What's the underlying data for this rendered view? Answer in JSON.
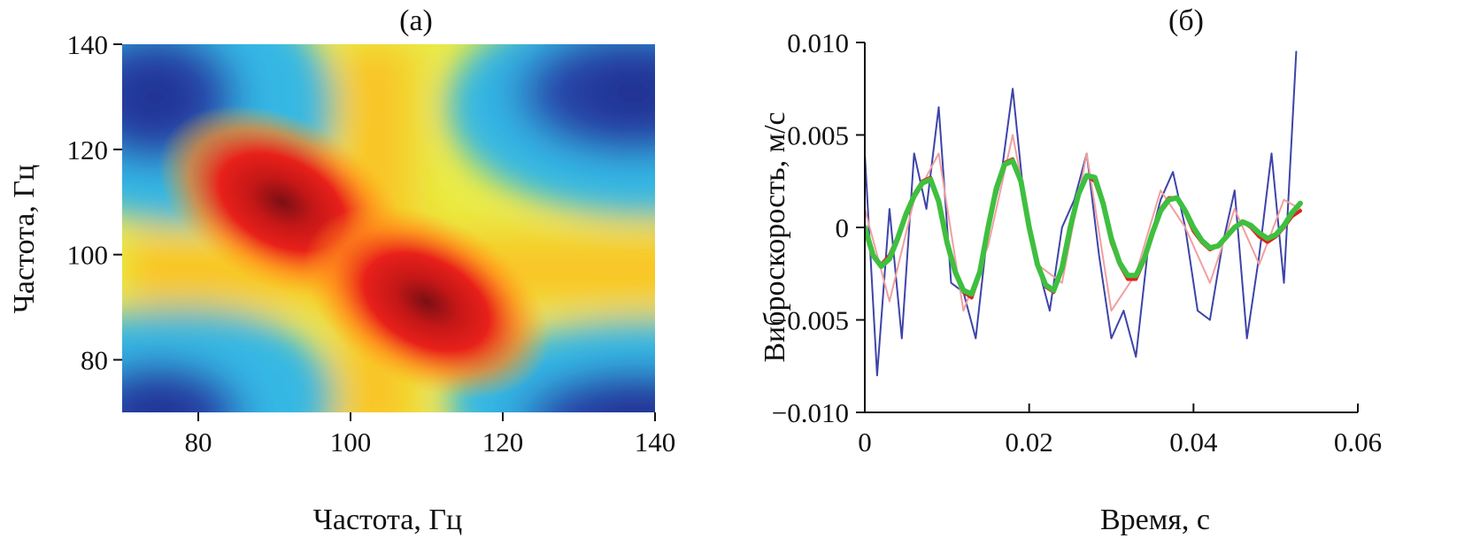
{
  "chart_data": [
    {
      "type": "heatmap",
      "panel_label": "(a)",
      "xlabel": "Частота, Гц",
      "ylabel": "Частота, Гц",
      "xlim": [
        70,
        140
      ],
      "ylim": [
        70,
        140
      ],
      "xticks": [
        80,
        100,
        120,
        140
      ],
      "yticks": [
        80,
        100,
        120,
        140
      ],
      "colormap": [
        "#1e2c8a",
        "#2a55b8",
        "#2fb6e6",
        "#f4ec42",
        "#ffae1a",
        "#e8201a",
        "#7a0f14"
      ],
      "peaks": [
        {
          "x": 91,
          "y": 110,
          "value": 1.0
        },
        {
          "x": 110,
          "y": 91,
          "value": 1.0
        }
      ],
      "grid": false
    },
    {
      "type": "line",
      "panel_label": "(б)",
      "xlabel": "Время, с",
      "ylabel": "Виброскорость, м/с",
      "xlim": [
        0,
        0.06
      ],
      "ylim": [
        -0.01,
        0.01
      ],
      "xticks": [
        0,
        0.02,
        0.04,
        0.06
      ],
      "xtick_labels": [
        "0",
        "0.02",
        "0.04",
        "0.06"
      ],
      "yticks": [
        -0.01,
        -0.005,
        0,
        0.005,
        0.01
      ],
      "ytick_labels": [
        "−0.010",
        "−0.005",
        "0",
        "0.005",
        "0.010"
      ],
      "grid": false,
      "series": [
        {
          "color": "#3d44a8",
          "x": [
            0,
            0.0015,
            0.003,
            0.0045,
            0.006,
            0.0075,
            0.009,
            0.0105,
            0.012,
            0.0135,
            0.015,
            0.0165,
            0.018,
            0.0195,
            0.021,
            0.0225,
            0.024,
            0.0255,
            0.027,
            0.0285,
            0.03,
            0.0315,
            0.033,
            0.0345,
            0.036,
            0.0375,
            0.039,
            0.0405,
            0.042,
            0.0435,
            0.045,
            0.0465,
            0.048,
            0.0495,
            0.051,
            0.0525
          ],
          "y": [
            0.004,
            -0.008,
            0.001,
            -0.006,
            0.004,
            0.001,
            0.0065,
            -0.003,
            -0.0035,
            -0.006,
            0.0,
            0.0025,
            0.0075,
            0.001,
            -0.002,
            -0.0045,
            0.0,
            0.0015,
            0.004,
            -0.0015,
            -0.006,
            -0.0045,
            -0.007,
            -0.001,
            0.0015,
            0.003,
            0.0,
            -0.0045,
            -0.005,
            -0.001,
            0.002,
            -0.006,
            -0.0015,
            0.004,
            -0.003,
            0.0095
          ]
        },
        {
          "color": "#f0a0a0",
          "x": [
            0,
            0.003,
            0.006,
            0.009,
            0.012,
            0.015,
            0.018,
            0.021,
            0.024,
            0.027,
            0.03,
            0.033,
            0.036,
            0.039,
            0.042,
            0.045,
            0.048,
            0.051,
            0.053
          ],
          "y": [
            0.001,
            -0.004,
            0.0015,
            0.004,
            -0.0045,
            -0.001,
            0.005,
            -0.002,
            -0.003,
            0.004,
            -0.0045,
            -0.0025,
            0.002,
            0.0,
            -0.003,
            0.001,
            -0.002,
            0.0015,
            0.001
          ]
        },
        {
          "color": "#e02020",
          "x": [
            0,
            0.001,
            0.002,
            0.003,
            0.004,
            0.005,
            0.006,
            0.007,
            0.008,
            0.009,
            0.01,
            0.011,
            0.012,
            0.013,
            0.014,
            0.015,
            0.016,
            0.017,
            0.018,
            0.019,
            0.02,
            0.021,
            0.022,
            0.023,
            0.024,
            0.025,
            0.026,
            0.027,
            0.028,
            0.029,
            0.03,
            0.031,
            0.032,
            0.033,
            0.034,
            0.035,
            0.036,
            0.037,
            0.038,
            0.039,
            0.04,
            0.041,
            0.042,
            0.043,
            0.044,
            0.045,
            0.046,
            0.047,
            0.048,
            0.049,
            0.05,
            0.051,
            0.052,
            0.053
          ],
          "y": [
            0.0,
            -0.0015,
            -0.002,
            -0.0015,
            -0.0005,
            0.0008,
            0.0018,
            0.0025,
            0.0027,
            0.0015,
            -0.0008,
            -0.0025,
            -0.0035,
            -0.0038,
            -0.0025,
            0.0,
            0.0022,
            0.0035,
            0.0037,
            0.0025,
            0.0,
            -0.002,
            -0.0032,
            -0.0035,
            -0.0022,
            0.0,
            0.0018,
            0.0028,
            0.0025,
            0.0012,
            -0.0008,
            -0.002,
            -0.0028,
            -0.0028,
            -0.0018,
            -0.0002,
            0.001,
            0.0016,
            0.0016,
            0.0008,
            -0.0002,
            -0.0008,
            -0.0012,
            -0.001,
            -0.0005,
            0.0,
            0.0003,
            0.0,
            -0.0005,
            -0.0008,
            -0.0005,
            0.0,
            0.0006,
            0.0009
          ]
        },
        {
          "color": "#3fbf3f",
          "x": [
            0,
            0.001,
            0.002,
            0.003,
            0.004,
            0.005,
            0.006,
            0.007,
            0.008,
            0.009,
            0.01,
            0.011,
            0.012,
            0.013,
            0.014,
            0.015,
            0.016,
            0.017,
            0.018,
            0.019,
            0.02,
            0.021,
            0.022,
            0.023,
            0.024,
            0.025,
            0.026,
            0.027,
            0.028,
            0.029,
            0.03,
            0.031,
            0.032,
            0.033,
            0.034,
            0.035,
            0.036,
            0.037,
            0.038,
            0.039,
            0.04,
            0.041,
            0.042,
            0.043,
            0.044,
            0.045,
            0.046,
            0.047,
            0.048,
            0.049,
            0.05,
            0.051,
            0.052,
            0.053
          ],
          "y": [
            0.0,
            -0.0015,
            -0.0021,
            -0.0017,
            -0.0006,
            0.0007,
            0.0017,
            0.0024,
            0.0026,
            0.0014,
            -0.0008,
            -0.0024,
            -0.0034,
            -0.0036,
            -0.0024,
            0.0,
            0.0021,
            0.0034,
            0.0036,
            0.0025,
            0.0,
            -0.002,
            -0.0031,
            -0.0034,
            -0.0022,
            0.0,
            0.0018,
            0.0028,
            0.0027,
            0.0013,
            -0.0006,
            -0.0019,
            -0.0026,
            -0.0026,
            -0.0017,
            -0.0003,
            0.0009,
            0.0015,
            0.0016,
            0.0009,
            0.0,
            -0.0007,
            -0.0011,
            -0.001,
            -0.0005,
            0.0,
            0.0003,
            0.0001,
            -0.0003,
            -0.0006,
            -0.0004,
            0.0001,
            0.0008,
            0.0013
          ]
        }
      ]
    }
  ]
}
